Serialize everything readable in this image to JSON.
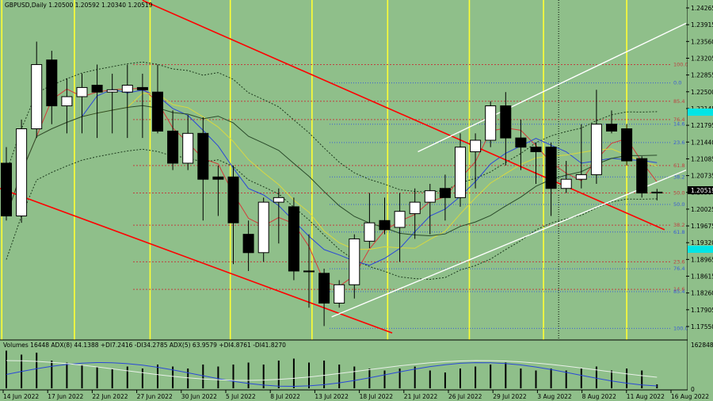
{
  "header": {
    "symbol_line": "GBPUSD,Daily  1.20500 1.20592 1.20340 1.20519",
    "indicator_line": "Volumes 16448  ADX(8) 44.1388 +DI7.2416 -DI34.2785  ADX(5) 63.9579 +DI4.8761 -DI41.8270"
  },
  "colors": {
    "background": "#8fbf8a",
    "bull_candle": "#ffffff",
    "bear_candle": "#000000",
    "channel_red": "#ff0000",
    "channel_white": "#ffffff",
    "vertical_marker": "#ffff33",
    "fib_red": "#c04040",
    "fib_blue": "#3a5cd6",
    "ma_fast": "#d43a3a",
    "ma_mid": "#2a48d8",
    "ma_slow": "#d8d840",
    "ma_long": "#2a4a2a",
    "price_tag_bg": "#000000",
    "price_tag_text": "#ffffff",
    "cyan_marker": "#00e5e5"
  },
  "chart_data": {
    "type": "candlestick",
    "symbol": "GBPUSD",
    "timeframe": "Daily",
    "y_ticks": [
      "1.24265",
      "1.23915",
      "1.23560",
      "1.23205",
      "1.22855",
      "1.22500",
      "1.22145",
      "1.21795",
      "1.21440",
      "1.21085",
      "1.20735",
      "1.20380",
      "1.20025",
      "1.19675",
      "1.19320",
      "1.18965",
      "1.18615",
      "1.18260",
      "1.17905",
      "1.17550"
    ],
    "x_ticks": [
      "14 Jun 2022",
      "17 Jun 2022",
      "22 Jun 2022",
      "27 Jun 2022",
      "30 Jun 2022",
      "5 Jul 2022",
      "8 Jul 2022",
      "13 Jul 2022",
      "18 Jul 2022",
      "21 Jul 2022",
      "26 Jul 2022",
      "29 Jul 2022",
      "3 Aug 2022",
      "8 Aug 2022",
      "11 Aug 2022",
      "16 Aug 2022"
    ],
    "ylim": [
      1.174,
      1.245
    ],
    "current_price": "1.20519",
    "candles": [
      {
        "o": 1.2115,
        "h": 1.215,
        "l": 1.199,
        "c": 1.2
      },
      {
        "o": 1.2,
        "h": 1.221,
        "l": 1.1985,
        "c": 1.219
      },
      {
        "o": 1.219,
        "h": 1.238,
        "l": 1.217,
        "c": 1.233
      },
      {
        "o": 1.234,
        "h": 1.236,
        "l": 1.22,
        "c": 1.224
      },
      {
        "o": 1.224,
        "h": 1.23,
        "l": 1.218,
        "c": 1.226
      },
      {
        "o": 1.226,
        "h": 1.231,
        "l": 1.218,
        "c": 1.228
      },
      {
        "o": 1.2285,
        "h": 1.233,
        "l": 1.217,
        "c": 1.227
      },
      {
        "o": 1.227,
        "h": 1.231,
        "l": 1.218,
        "c": 1.2275
      },
      {
        "o": 1.227,
        "h": 1.233,
        "l": 1.217,
        "c": 1.2285
      },
      {
        "o": 1.228,
        "h": 1.231,
        "l": 1.217,
        "c": 1.2275
      },
      {
        "o": 1.227,
        "h": 1.233,
        "l": 1.218,
        "c": 1.2185
      },
      {
        "o": 1.2185,
        "h": 1.223,
        "l": 1.21,
        "c": 1.2115
      },
      {
        "o": 1.2115,
        "h": 1.222,
        "l": 1.21,
        "c": 1.218
      },
      {
        "o": 1.218,
        "h": 1.2215,
        "l": 1.199,
        "c": 1.208
      },
      {
        "o": 1.2085,
        "h": 1.211,
        "l": 1.2,
        "c": 1.208
      },
      {
        "o": 1.2085,
        "h": 1.211,
        "l": 1.1895,
        "c": 1.1985
      },
      {
        "o": 1.196,
        "h": 1.199,
        "l": 1.188,
        "c": 1.192
      },
      {
        "o": 1.192,
        "h": 1.204,
        "l": 1.19,
        "c": 1.203
      },
      {
        "o": 1.203,
        "h": 1.206,
        "l": 1.194,
        "c": 1.204
      },
      {
        "o": 1.202,
        "h": 1.204,
        "l": 1.186,
        "c": 1.188
      },
      {
        "o": 1.188,
        "h": 1.196,
        "l": 1.18,
        "c": 1.188
      },
      {
        "o": 1.1875,
        "h": 1.1885,
        "l": 1.176,
        "c": 1.181
      },
      {
        "o": 1.181,
        "h": 1.186,
        "l": 1.18,
        "c": 1.185
      },
      {
        "o": 1.185,
        "h": 1.196,
        "l": 1.182,
        "c": 1.195
      },
      {
        "o": 1.1945,
        "h": 1.205,
        "l": 1.193,
        "c": 1.1985
      },
      {
        "o": 1.199,
        "h": 1.204,
        "l": 1.196,
        "c": 1.197
      },
      {
        "o": 1.1975,
        "h": 1.205,
        "l": 1.19,
        "c": 1.201
      },
      {
        "o": 1.2005,
        "h": 1.206,
        "l": 1.195,
        "c": 1.203
      },
      {
        "o": 1.203,
        "h": 1.207,
        "l": 1.196,
        "c": 1.2055
      },
      {
        "o": 1.206,
        "h": 1.209,
        "l": 1.199,
        "c": 1.204
      },
      {
        "o": 1.204,
        "h": 1.218,
        "l": 1.202,
        "c": 1.215
      },
      {
        "o": 1.214,
        "h": 1.218,
        "l": 1.206,
        "c": 1.2165
      },
      {
        "o": 1.2165,
        "h": 1.225,
        "l": 1.215,
        "c": 1.224
      },
      {
        "o": 1.224,
        "h": 1.227,
        "l": 1.211,
        "c": 1.217
      },
      {
        "o": 1.217,
        "h": 1.221,
        "l": 1.21,
        "c": 1.215
      },
      {
        "o": 1.215,
        "h": 1.216,
        "l": 1.207,
        "c": 1.214
      },
      {
        "o": 1.215,
        "h": 1.216,
        "l": 1.2,
        "c": 1.206
      },
      {
        "o": 1.206,
        "h": 1.212,
        "l": 1.205,
        "c": 1.208
      },
      {
        "o": 1.208,
        "h": 1.22,
        "l": 1.206,
        "c": 1.209
      },
      {
        "o": 1.209,
        "h": 1.2275,
        "l": 1.207,
        "c": 1.22
      },
      {
        "o": 1.22,
        "h": 1.223,
        "l": 1.218,
        "c": 1.2185
      },
      {
        "o": 1.219,
        "h": 1.22,
        "l": 1.211,
        "c": 1.212
      },
      {
        "o": 1.2125,
        "h": 1.213,
        "l": 1.204,
        "c": 1.205
      },
      {
        "o": 1.205,
        "h": 1.2059,
        "l": 1.2034,
        "c": 1.2052
      }
    ],
    "volumes": [
      0.95,
      0.85,
      0.9,
      0.7,
      0.65,
      0.6,
      0.55,
      0.5,
      0.55,
      0.5,
      0.6,
      0.55,
      0.5,
      0.6,
      0.55,
      0.6,
      0.65,
      0.6,
      0.7,
      0.75,
      0.65,
      0.7,
      0.6,
      0.55,
      0.5,
      0.45,
      0.5,
      0.55,
      0.45,
      0.4,
      0.5,
      0.55,
      0.6,
      0.65,
      0.5,
      0.45,
      0.5,
      0.45,
      0.5,
      0.55,
      0.45,
      0.5,
      0.45,
      0.1
    ],
    "fib_levels_red": [
      {
        "label": "100.0",
        "y": 1.233
      },
      {
        "label": "85.4",
        "y": 1.225
      },
      {
        "label": "76.4",
        "y": 1.221
      },
      {
        "label": "61.8",
        "y": 1.211
      },
      {
        "label": "50.0",
        "y": 1.205
      },
      {
        "label": "38.2",
        "y": 1.198
      },
      {
        "label": "23.6",
        "y": 1.19
      },
      {
        "label": "14.6",
        "y": 1.184
      }
    ],
    "fib_levels_blue": [
      {
        "label": "0.0",
        "y": 1.229
      },
      {
        "label": "14.6",
        "y": 1.22
      },
      {
        "label": "23.6",
        "y": 1.216
      },
      {
        "label": "38.2",
        "y": 1.2085
      },
      {
        "label": "50.0",
        "y": 1.2025
      },
      {
        "label": "61.8",
        "y": 1.1965
      },
      {
        "label": "76.4",
        "y": 1.1885
      },
      {
        "label": "85.4",
        "y": 1.1835
      },
      {
        "label": "100.0",
        "y": 1.1755
      }
    ],
    "lines": {
      "red_channel_upper": [
        [
          9,
          1.247
        ],
        [
          43.5,
          1.197
        ]
      ],
      "red_channel_lower": [
        [
          -0.5,
          1.206
        ],
        [
          25.5,
          1.1745
        ]
      ],
      "white_channel_upper": [
        [
          27.2,
          1.214
        ],
        [
          47,
          1.242
        ]
      ],
      "white_channel_lower": [
        [
          21.5,
          1.178
        ],
        [
          47,
          1.21
        ]
      ]
    },
    "vertical_markers_x": [
      -0.3,
      4.5,
      9.5,
      14.8,
      20.2,
      25.2,
      30.6,
      35.5,
      41.0,
      46.2
    ],
    "dotted_vertical_x": 36.5
  }
}
